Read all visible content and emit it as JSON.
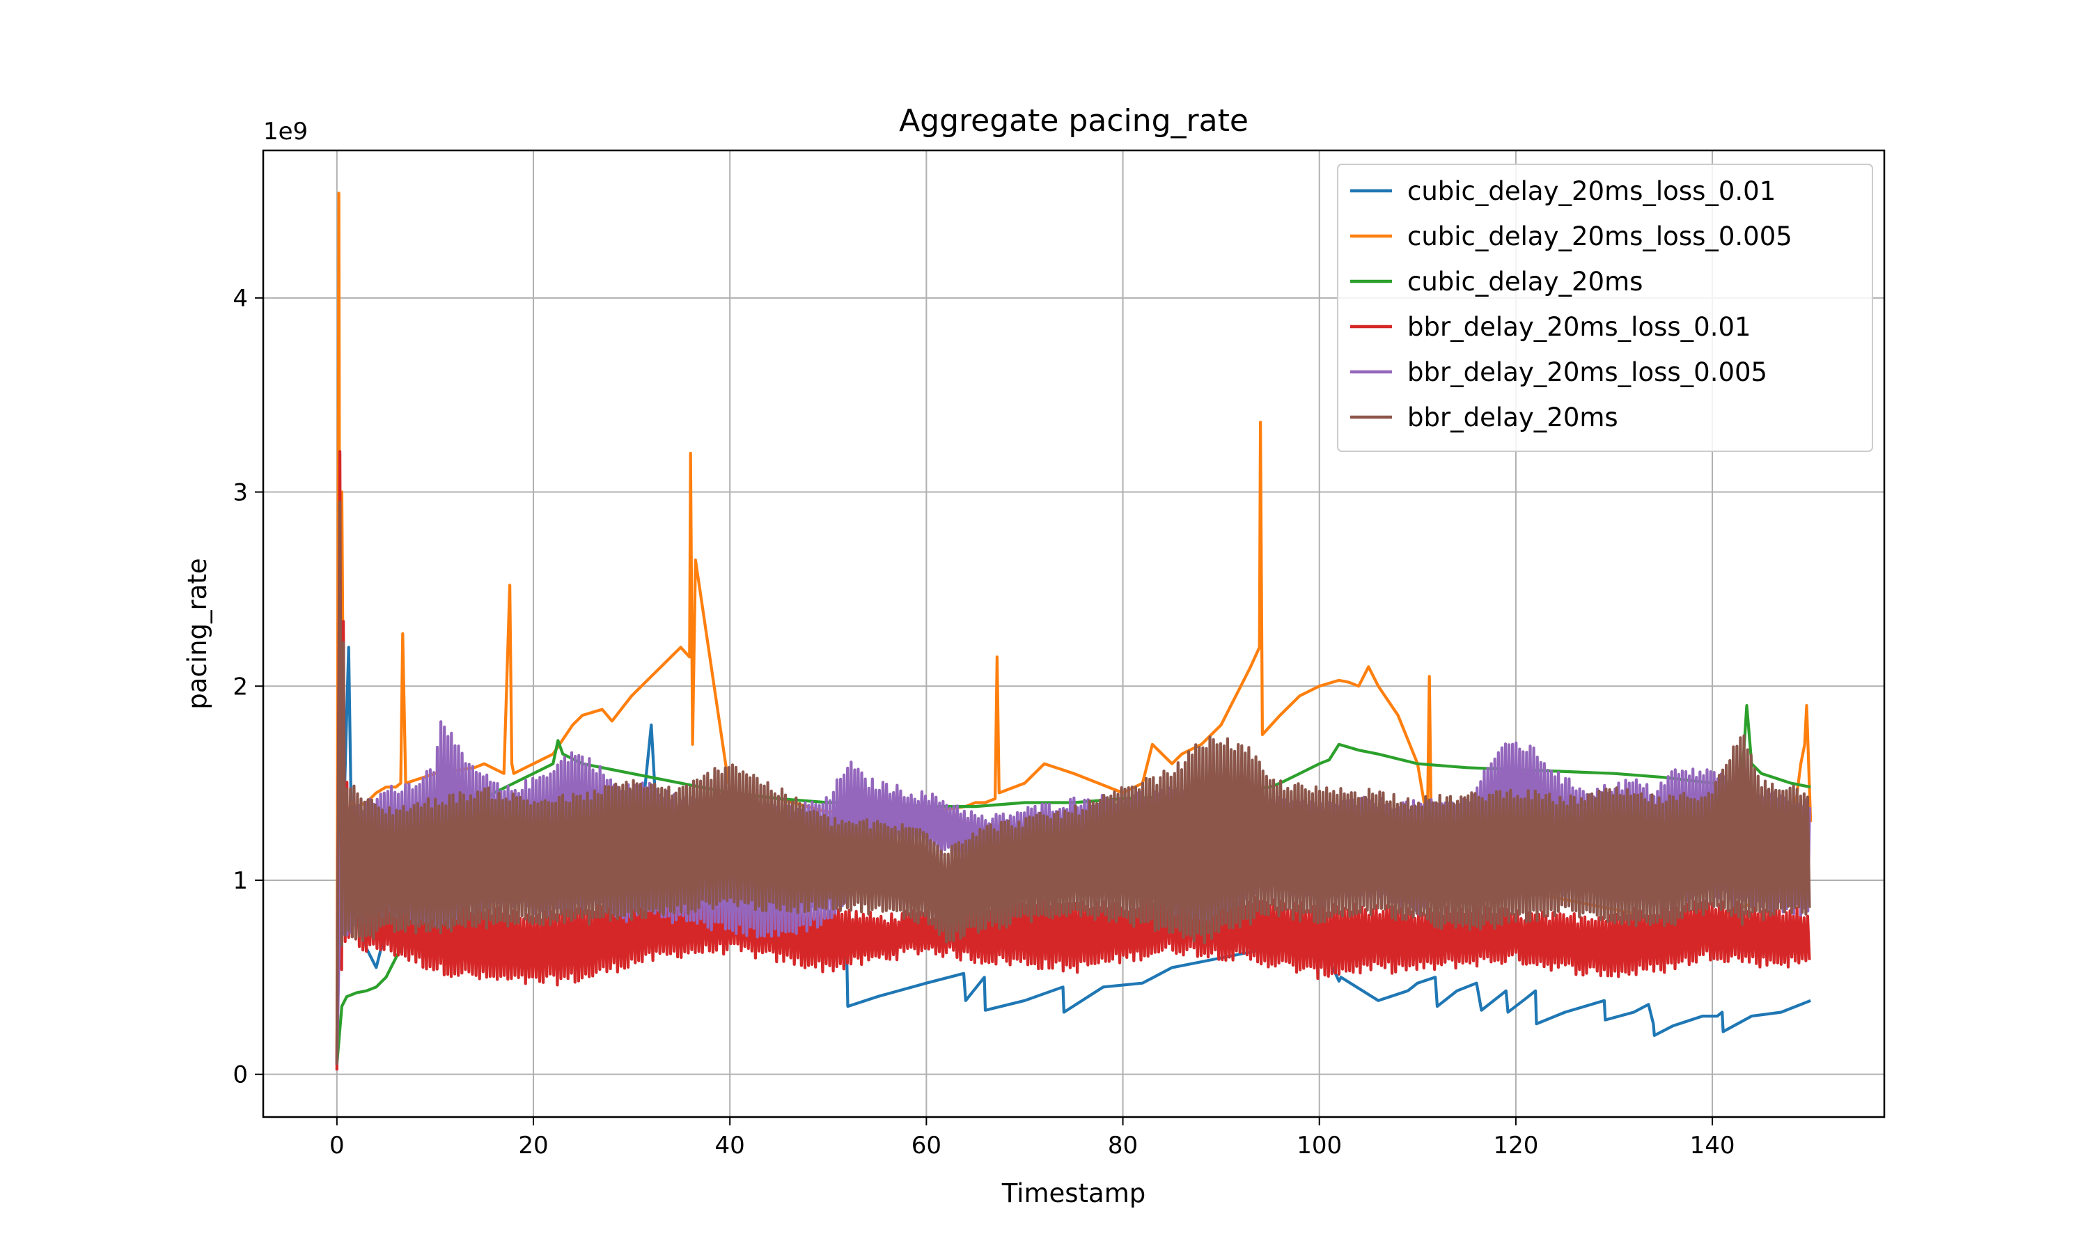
{
  "chart_data": {
    "type": "line",
    "title": "Aggregate pacing_rate",
    "xlabel": "Timestamp",
    "ylabel": "pacing_rate",
    "y_offset_label": "1e9",
    "xlim": [
      -7.5,
      157.5
    ],
    "ylim": [
      -0.22,
      4.76
    ],
    "x_ticks": [
      0,
      20,
      40,
      60,
      80,
      100,
      120,
      140
    ],
    "x_tick_labels": [
      "0",
      "20",
      "40",
      "60",
      "80",
      "100",
      "120",
      "140"
    ],
    "y_ticks": [
      0,
      1,
      2,
      3,
      4
    ],
    "y_tick_labels": [
      "0",
      "1",
      "2",
      "3",
      "4"
    ],
    "grid": true,
    "legend_position": "upper right",
    "series": [
      {
        "name": "cubic_delay_20ms_loss_0.01",
        "color": "#1f77b4",
        "x": [
          0,
          0.3,
          0.8,
          1.2,
          1.5,
          2,
          3,
          4,
          5,
          8,
          10,
          12,
          15,
          20,
          25,
          29.5,
          30,
          32,
          33,
          35,
          40,
          45,
          50,
          51.9,
          52,
          55,
          60,
          63.8,
          64,
          65.9,
          66,
          70,
          73.9,
          74,
          78,
          82,
          85,
          90,
          95,
          100,
          102,
          102.2,
          106,
          109,
          110,
          111.8,
          112,
          114,
          116,
          116.5,
          119,
          119.2,
          121,
          122,
          122.1,
          125,
          129,
          129.1,
          132,
          133.5,
          134,
          134.1,
          136,
          139,
          140.5,
          141,
          141.1,
          144,
          147,
          150
        ],
        "y": [
          0.05,
          1.9,
          1.5,
          2.2,
          1.2,
          1.1,
          0.65,
          0.55,
          0.75,
          0.85,
          0.95,
          0.9,
          1.0,
          1.05,
          1.1,
          1.15,
          0.8,
          1.8,
          0.9,
          1.0,
          0.95,
          0.9,
          0.85,
          0.6,
          0.35,
          0.4,
          0.47,
          0.52,
          0.38,
          0.5,
          0.33,
          0.38,
          0.45,
          0.32,
          0.45,
          0.47,
          0.55,
          0.6,
          0.65,
          0.7,
          0.48,
          0.5,
          0.38,
          0.43,
          0.47,
          0.5,
          0.35,
          0.43,
          0.47,
          0.33,
          0.43,
          0.32,
          0.39,
          0.43,
          0.26,
          0.32,
          0.38,
          0.28,
          0.32,
          0.36,
          0.26,
          0.2,
          0.25,
          0.3,
          0.3,
          0.32,
          0.22,
          0.3,
          0.32,
          0.38
        ]
      },
      {
        "name": "cubic_delay_20ms_loss_0.005",
        "color": "#ff7f0e",
        "x": [
          0,
          0.2,
          0.3,
          0.5,
          0.7,
          0.9,
          1.2,
          1.5,
          2,
          3,
          4,
          5,
          6,
          6.5,
          6.7,
          7,
          10,
          14,
          15,
          17,
          17.6,
          17.8,
          18,
          20,
          22,
          24,
          25,
          27,
          28,
          30,
          31,
          32,
          33,
          34,
          35,
          35.9,
          36,
          36.2,
          36.5,
          40,
          45,
          50,
          55,
          60,
          64,
          65,
          66,
          67,
          67.2,
          67.4,
          70,
          72,
          75,
          80,
          82,
          83,
          85,
          86,
          88,
          90,
          91,
          92,
          93,
          93.9,
          94,
          94.2,
          96,
          98,
          100,
          102,
          103,
          104,
          105,
          106,
          108,
          110,
          111,
          111.2,
          111.4,
          113,
          116,
          120,
          125,
          130,
          135,
          140,
          145,
          148,
          149,
          149.4,
          149.6,
          150
        ],
        "y": [
          0.05,
          4.54,
          1.8,
          3.0,
          1.5,
          1.3,
          1.35,
          1.4,
          1.38,
          1.4,
          1.45,
          1.48,
          1.48,
          1.5,
          2.27,
          1.5,
          1.55,
          1.58,
          1.6,
          1.55,
          2.52,
          1.6,
          1.55,
          1.6,
          1.65,
          1.8,
          1.85,
          1.88,
          1.82,
          1.95,
          2.0,
          2.05,
          2.1,
          2.15,
          2.2,
          2.15,
          3.2,
          1.7,
          2.65,
          1.45,
          1.42,
          1.35,
          1.4,
          1.35,
          1.38,
          1.4,
          1.4,
          1.42,
          2.15,
          1.45,
          1.5,
          1.6,
          1.55,
          1.45,
          1.5,
          1.7,
          1.6,
          1.65,
          1.7,
          1.8,
          1.9,
          2.0,
          2.1,
          2.2,
          3.36,
          1.75,
          1.85,
          1.95,
          2.0,
          2.03,
          2.02,
          2.0,
          2.1,
          2.0,
          1.85,
          1.6,
          1.3,
          2.05,
          1.25,
          1.1,
          1.05,
          0.95,
          0.9,
          0.85,
          0.8,
          0.8,
          0.9,
          1.2,
          1.6,
          1.7,
          1.9,
          1.3
        ]
      },
      {
        "name": "cubic_delay_20ms",
        "color": "#2ca02c",
        "x": [
          0,
          0.5,
          1,
          2,
          3,
          4,
          5,
          6,
          7,
          8,
          10,
          12,
          14,
          16,
          18,
          20,
          22,
          22.5,
          23,
          25,
          30,
          35,
          40,
          45,
          50,
          55,
          60,
          65,
          70,
          75,
          80,
          85,
          90,
          95,
          96,
          98,
          100,
          101,
          102,
          104,
          106,
          110,
          115,
          120,
          125,
          130,
          135,
          140,
          143,
          143.5,
          144,
          145,
          148,
          150
        ],
        "y": [
          0.05,
          0.35,
          0.4,
          0.42,
          0.43,
          0.45,
          0.5,
          0.6,
          0.7,
          0.8,
          1.0,
          1.2,
          1.35,
          1.45,
          1.5,
          1.55,
          1.6,
          1.72,
          1.65,
          1.6,
          1.55,
          1.5,
          1.45,
          1.42,
          1.4,
          1.4,
          1.38,
          1.38,
          1.4,
          1.4,
          1.42,
          1.43,
          1.45,
          1.48,
          1.5,
          1.55,
          1.6,
          1.62,
          1.7,
          1.67,
          1.65,
          1.6,
          1.58,
          1.57,
          1.56,
          1.55,
          1.53,
          1.5,
          1.5,
          1.9,
          1.6,
          1.55,
          1.5,
          1.48
        ]
      },
      {
        "name": "bbr_delay_20ms_loss_0.01",
        "color": "#d62728",
        "band": true,
        "x": [
          0,
          0.3,
          1,
          3,
          5,
          10,
          15,
          20,
          25,
          30,
          35,
          40,
          45,
          50,
          55,
          60,
          65,
          70,
          75,
          80,
          85,
          90,
          95,
          100,
          105,
          110,
          115,
          120,
          125,
          130,
          135,
          140,
          145,
          150
        ],
        "y_low": [
          0.02,
          0.5,
          0.7,
          0.65,
          0.65,
          0.55,
          0.5,
          0.48,
          0.5,
          0.58,
          0.63,
          0.65,
          0.6,
          0.55,
          0.6,
          0.65,
          0.6,
          0.58,
          0.55,
          0.6,
          0.65,
          0.62,
          0.58,
          0.52,
          0.55,
          0.55,
          0.58,
          0.6,
          0.55,
          0.52,
          0.55,
          0.62,
          0.58,
          0.58
        ],
        "y_high": [
          0.02,
          3.2,
          1.5,
          0.88,
          0.9,
          0.88,
          0.85,
          0.82,
          0.85,
          0.88,
          0.9,
          0.9,
          0.88,
          0.85,
          0.8,
          0.82,
          0.85,
          0.9,
          0.88,
          0.85,
          0.92,
          0.9,
          0.88,
          0.85,
          0.85,
          0.82,
          0.85,
          0.82,
          0.8,
          0.82,
          0.85,
          0.88,
          0.85,
          0.82
        ]
      },
      {
        "name": "bbr_delay_20ms_loss_0.005",
        "color": "#9467bd",
        "band": true,
        "x": [
          0,
          0.5,
          2,
          5,
          8,
          10,
          10.5,
          13,
          17,
          20,
          24,
          26,
          29,
          31,
          35,
          40,
          45,
          50,
          52,
          54,
          58,
          62,
          66,
          70,
          75,
          80,
          85,
          88,
          92,
          95,
          100,
          105,
          110,
          115,
          118,
          120,
          122,
          125,
          128,
          130,
          132,
          134,
          136,
          140,
          142,
          145,
          148,
          150
        ],
        "y_low": [
          0.05,
          0.7,
          0.8,
          0.85,
          0.8,
          0.8,
          0.75,
          0.85,
          0.9,
          0.85,
          0.85,
          0.9,
          0.8,
          0.85,
          0.8,
          0.75,
          0.72,
          0.8,
          0.9,
          1.1,
          1.2,
          1.15,
          1.05,
          1.0,
          1.05,
          1.1,
          0.85,
          0.8,
          0.9,
          1.0,
          0.9,
          0.95,
          0.85,
          0.95,
          1.0,
          1.05,
          1.0,
          0.95,
          1.0,
          0.9,
          0.95,
          0.9,
          0.9,
          0.95,
          0.9,
          0.88,
          0.85,
          0.85
        ],
        "y_high": [
          0.05,
          1.4,
          1.35,
          1.45,
          1.5,
          1.58,
          1.85,
          1.6,
          1.45,
          1.5,
          1.65,
          1.6,
          1.45,
          1.5,
          1.4,
          1.4,
          1.35,
          1.4,
          1.6,
          1.5,
          1.45,
          1.4,
          1.3,
          1.35,
          1.4,
          1.42,
          1.45,
          1.4,
          1.42,
          1.4,
          1.38,
          1.4,
          1.38,
          1.4,
          1.65,
          1.7,
          1.65,
          1.5,
          1.45,
          1.48,
          1.5,
          1.45,
          1.55,
          1.55,
          1.5,
          1.45,
          1.4,
          1.4
        ]
      },
      {
        "name": "bbr_delay_20ms",
        "color": "#8c564b",
        "band": true,
        "x": [
          0,
          0.3,
          1,
          3,
          5,
          10,
          15,
          20,
          25,
          30,
          35,
          40,
          45,
          50,
          55,
          60,
          62,
          65,
          70,
          75,
          80,
          85,
          88,
          90,
          93,
          95,
          100,
          105,
          110,
          115,
          120,
          125,
          130,
          135,
          140,
          143,
          145,
          150
        ],
        "y_low": [
          0.05,
          0.6,
          0.75,
          0.7,
          0.75,
          0.75,
          0.78,
          0.8,
          0.8,
          0.82,
          0.85,
          0.9,
          0.85,
          0.88,
          0.85,
          0.8,
          0.7,
          0.75,
          0.8,
          0.85,
          0.8,
          0.75,
          0.7,
          0.75,
          0.8,
          0.85,
          0.8,
          0.85,
          0.8,
          0.75,
          0.8,
          0.85,
          0.8,
          0.78,
          0.85,
          0.8,
          0.82,
          0.85
        ],
        "y_high": [
          0.05,
          2.95,
          1.5,
          1.4,
          1.35,
          1.4,
          1.45,
          1.4,
          1.42,
          1.5,
          1.45,
          1.6,
          1.45,
          1.3,
          1.28,
          1.25,
          1.15,
          1.25,
          1.3,
          1.35,
          1.45,
          1.55,
          1.7,
          1.72,
          1.65,
          1.5,
          1.45,
          1.45,
          1.4,
          1.42,
          1.45,
          1.4,
          1.45,
          1.4,
          1.45,
          1.75,
          1.5,
          1.45
        ]
      }
    ]
  }
}
